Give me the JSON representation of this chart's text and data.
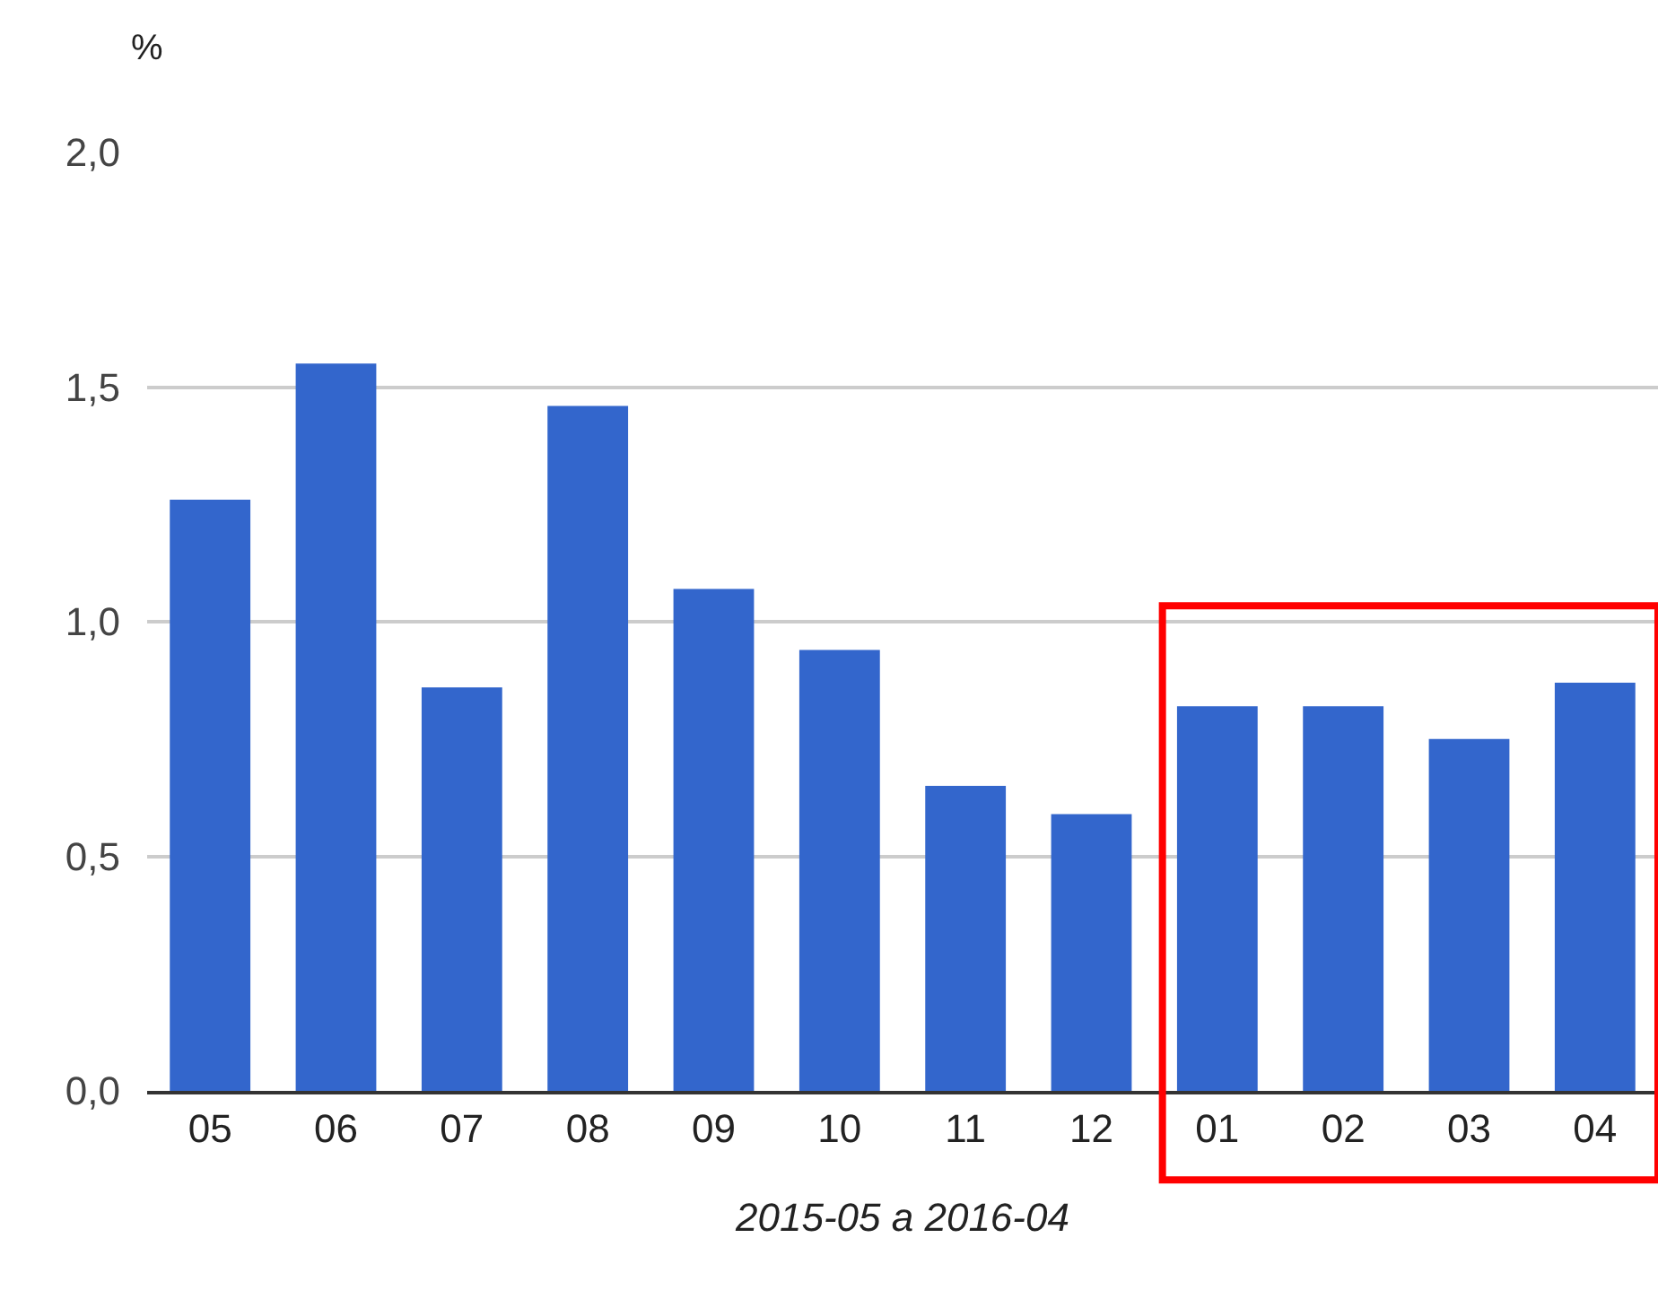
{
  "chart_data": {
    "type": "bar",
    "ylabel": "%",
    "xlabel": "2015-05 a 2016-04",
    "categories": [
      "05",
      "06",
      "07",
      "08",
      "09",
      "10",
      "11",
      "12",
      "01",
      "02",
      "03",
      "04"
    ],
    "values": [
      1.26,
      1.55,
      0.86,
      1.46,
      1.07,
      0.94,
      0.65,
      0.59,
      0.82,
      0.82,
      0.75,
      0.87
    ],
    "color": "#3366cc",
    "ylim": [
      0,
      2
    ],
    "yticks": [
      {
        "value": 0,
        "label": "0,0"
      },
      {
        "value": 0.5,
        "label": "0,5"
      },
      {
        "value": 1,
        "label": "1,0"
      },
      {
        "value": 1.5,
        "label": "1,5"
      },
      {
        "value": 2,
        "label": "2,0"
      }
    ],
    "grid": "y"
  }
}
